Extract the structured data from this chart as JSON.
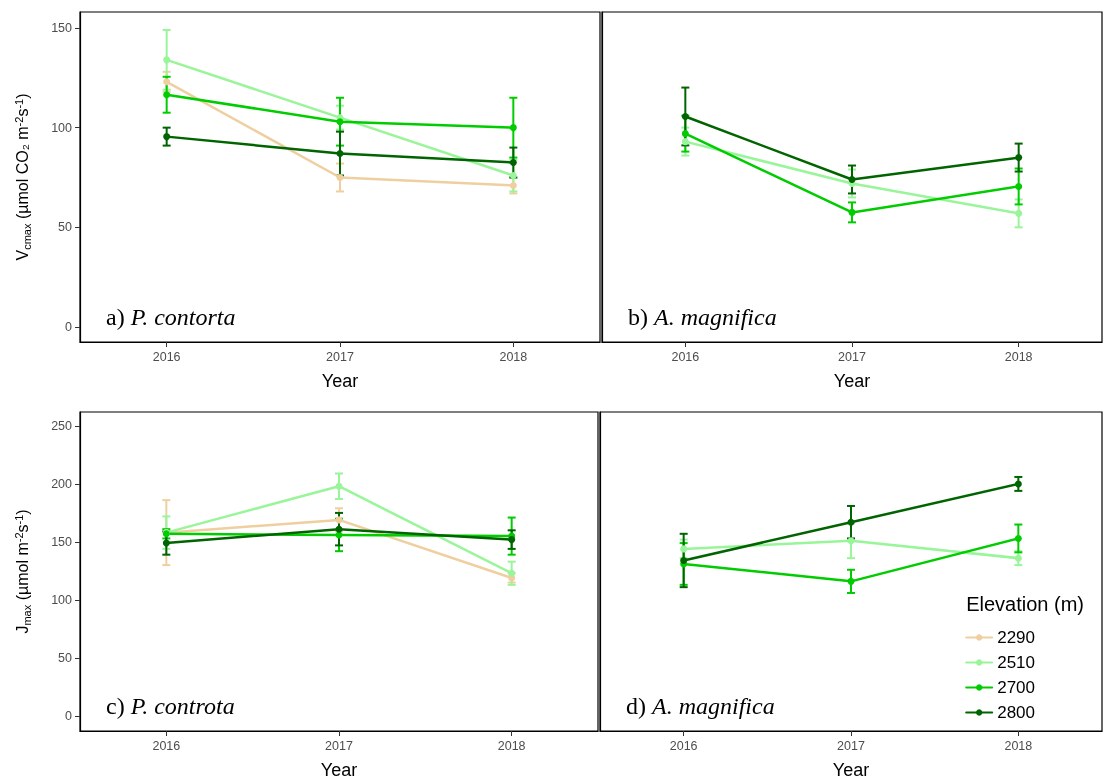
{
  "chart_data": [
    {
      "type": "line",
      "categories": [
        "2016",
        "2017",
        "2018"
      ],
      "xlabel": "Year",
      "ylabel": "V$_{cmax}$ (µmol CO₂ m$^{-2}$s$^{-1}$)",
      "ylim": [
        -7.5,
        158
      ],
      "yticks": [
        0,
        50,
        100,
        150
      ],
      "grid": false,
      "marker": "circle",
      "annotations": [
        "a) P. contorta"
      ],
      "series": [
        {
          "color": "#efcf9f",
          "values": [
            123,
            75,
            71
          ],
          "errors": [
            5,
            7,
            4
          ]
        },
        {
          "color": "#99f599",
          "values": [
            134,
            105,
            76
          ],
          "errors": [
            15,
            6,
            8
          ]
        },
        {
          "color": "#00cc00",
          "values": [
            116.5,
            103,
            100
          ],
          "errors": [
            9,
            12,
            15
          ]
        },
        {
          "color": "#006400",
          "values": [
            95.5,
            87,
            82.5
          ],
          "errors": [
            4.5,
            11,
            7.5
          ]
        }
      ]
    },
    {
      "type": "line",
      "categories": [
        "2016",
        "2017",
        "2018"
      ],
      "xlabel": "Year",
      "ylim": [
        -7.5,
        158
      ],
      "yticks": [
        0,
        50,
        100,
        150
      ],
      "tick_labels": "x",
      "grid": false,
      "marker": "circle",
      "annotations": [
        "b) A. magnifica"
      ],
      "series": [
        {
          "color": "#99f599",
          "values": [
            93,
            72,
            57
          ],
          "errors": [
            7,
            7,
            7
          ]
        },
        {
          "color": "#00cc00",
          "values": [
            97,
            57.5,
            70.5
          ],
          "errors": [
            9,
            5,
            9
          ]
        },
        {
          "color": "#006400",
          "values": [
            105.6,
            74,
            85
          ],
          "errors": [
            14.5,
            7,
            7
          ]
        }
      ]
    },
    {
      "type": "line",
      "categories": [
        "2016",
        "2017",
        "2018"
      ],
      "xlabel": "Year",
      "ylabel": "J$_{max}$ (µmol m$^{-2}$s$^{-1}$)",
      "ylim": [
        -13,
        262
      ],
      "yticks": [
        0,
        50,
        100,
        150,
        200,
        250
      ],
      "grid": false,
      "marker": "circle",
      "annotations": [
        "c) P. controta"
      ],
      "series": [
        {
          "color": "#efcf9f",
          "values": [
            158,
            169,
            119
          ],
          "errors": [
            28,
            10,
            4
          ]
        },
        {
          "color": "#99f599",
          "values": [
            158,
            198,
            123
          ],
          "errors": [
            14,
            11,
            10
          ]
        },
        {
          "color": "#00cc00",
          "values": [
            157,
            156,
            155
          ],
          "errors": [
            4,
            14,
            16
          ]
        },
        {
          "color": "#006400",
          "values": [
            149,
            161,
            152
          ],
          "errors": [
            10,
            14,
            8
          ]
        }
      ]
    },
    {
      "type": "line",
      "categories": [
        "2016",
        "2017",
        "2018"
      ],
      "xlabel": "Year",
      "ylim": [
        -13,
        262
      ],
      "yticks": [
        0,
        50,
        100,
        150,
        200,
        250
      ],
      "tick_labels": "x",
      "grid": false,
      "marker": "circle",
      "legend": "bottom right",
      "legend_title": "Elevation (m)",
      "annotations": [
        "d) A. magnifica"
      ],
      "series": [
        {
          "name": "2290",
          "color": "#efcf9f",
          "values": [
            null,
            null,
            null
          ]
        },
        {
          "name": "2510",
          "color": "#99f599",
          "values": [
            144,
            151,
            136
          ],
          "errors": [
            8,
            15,
            6
          ]
        },
        {
          "name": "2700",
          "color": "#00cc00",
          "values": [
            131,
            116,
            153
          ],
          "errors": [
            18,
            10,
            12
          ]
        },
        {
          "name": "2800",
          "color": "#006400",
          "values": [
            134,
            167,
            200
          ],
          "errors": [
            23,
            14,
            6
          ]
        }
      ]
    }
  ]
}
